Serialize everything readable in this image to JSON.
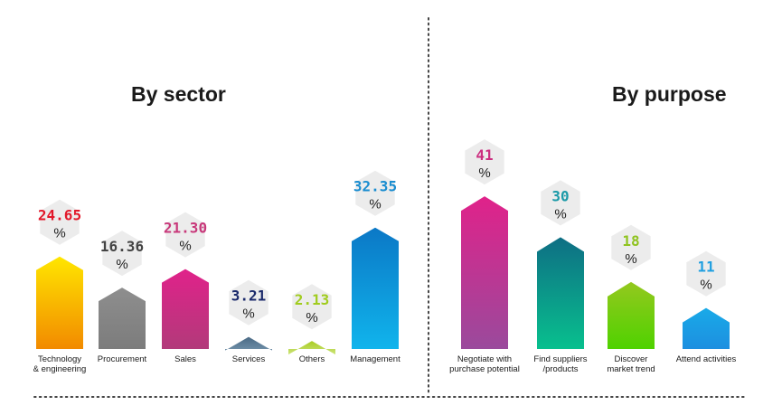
{
  "chart_data": [
    {
      "type": "bar",
      "title": "By sector",
      "unit": "%",
      "categories": [
        "Technology\n& engineering",
        "Procurement",
        "Sales",
        "Services",
        "Others",
        "Management"
      ],
      "value_labels": [
        "24.65",
        "16.36",
        "21.30",
        "3.21",
        "2.13",
        "32.35"
      ],
      "values": [
        24.65,
        16.36,
        21.3,
        3.21,
        2.13,
        32.35
      ],
      "label_colors": [
        "#e2182a",
        "#444444",
        "#c8387a",
        "#1b2a6b",
        "#a0cc1e",
        "#1a8dd0"
      ],
      "bar_gradients": [
        [
          "#ffe600",
          "#f28a00"
        ],
        [
          "#8e8e8e",
          "#7c7c7c"
        ],
        [
          "#e0228a",
          "#b23a7a"
        ],
        [
          "#4a6a85",
          "#6f8fa8"
        ],
        [
          "#a8cc22",
          "#cde47a"
        ],
        [
          "#0b78c6",
          "#10b4ec"
        ]
      ],
      "grid": false
    },
    {
      "type": "bar",
      "title": "By purpose",
      "unit": "%",
      "categories": [
        "Negotiate with\npurchase potential",
        "Find suppliers\n/products",
        "Discover\nmarket trend",
        "Attend activities"
      ],
      "value_labels": [
        "41",
        "30",
        "18",
        "11"
      ],
      "values": [
        41,
        30,
        18,
        11
      ],
      "label_colors": [
        "#cc2e80",
        "#1b9aa8",
        "#8fc31f",
        "#1f9fe0"
      ],
      "bar_gradients": [
        [
          "#e0228a",
          "#9a4a9c"
        ],
        [
          "#0e6e84",
          "#08c08e"
        ],
        [
          "#94c81e",
          "#4fd200"
        ],
        [
          "#19aae8",
          "#1d8fe0"
        ]
      ],
      "grid": false
    }
  ]
}
